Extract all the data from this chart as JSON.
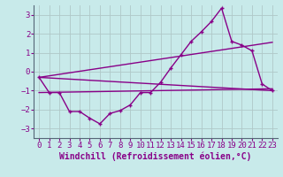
{
  "background_color": "#c8eaea",
  "grid_color": "#b0c8c8",
  "line_color": "#880088",
  "xlim": [
    -0.5,
    23.5
  ],
  "ylim": [
    -3.5,
    3.5
  ],
  "yticks": [
    -3,
    -2,
    -1,
    0,
    1,
    2,
    3
  ],
  "xticks": [
    0,
    1,
    2,
    3,
    4,
    5,
    6,
    7,
    8,
    9,
    10,
    11,
    12,
    13,
    14,
    15,
    16,
    17,
    18,
    19,
    20,
    21,
    22,
    23
  ],
  "xlabel": "Windchill (Refroidissement éolien,°C)",
  "line1_x": [
    0,
    1,
    2,
    3,
    4,
    5,
    6,
    7,
    8,
    9,
    10,
    11,
    12,
    13,
    14,
    15,
    16,
    17,
    18,
    19,
    20,
    21,
    22,
    23
  ],
  "line1_y": [
    -0.3,
    -1.1,
    -1.1,
    -2.1,
    -2.1,
    -2.45,
    -2.75,
    -2.2,
    -2.05,
    -1.75,
    -1.1,
    -1.1,
    -0.55,
    0.2,
    0.9,
    1.6,
    2.1,
    2.65,
    3.35,
    1.6,
    1.4,
    1.1,
    -0.65,
    -1.0
  ],
  "line2_x": [
    0,
    23
  ],
  "line2_y": [
    -1.1,
    -0.9
  ],
  "line3_x": [
    0,
    23
  ],
  "line3_y": [
    -0.3,
    1.55
  ],
  "line4_x": [
    0,
    23
  ],
  "line4_y": [
    -0.3,
    -1.0
  ],
  "font_size_xlabel": 7,
  "font_size_ticks": 6.5,
  "marker_size": 3.5,
  "line_width": 1.0
}
